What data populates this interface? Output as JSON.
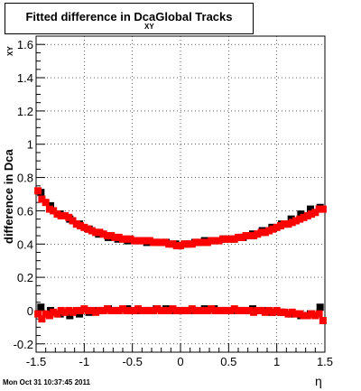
{
  "chart_data": {
    "type": "scatter",
    "title": "Fitted difference in Dca",
    "title_subscript": "XY",
    "title_suffix": "Global Tracks",
    "xlabel": "η",
    "ylabel": "difference in Dca",
    "ylabel_subscript": "XY",
    "xlim": [
      -1.5,
      1.5
    ],
    "ylim": [
      -0.25,
      1.65
    ],
    "xticks": [
      -1.5,
      -1,
      -0.5,
      0,
      0.5,
      1,
      1.5
    ],
    "xtick_labels": [
      "-1.5",
      "-1",
      "-0.5",
      "0",
      "0.5",
      "1",
      "1.5"
    ],
    "yticks": [
      -0.2,
      0,
      0.2,
      0.4,
      0.6,
      0.8,
      1,
      1.2,
      1.4,
      1.6
    ],
    "ytick_labels": [
      "-0.2",
      "0",
      "0.2",
      "0.4",
      "0.6",
      "0.8",
      "1",
      "1.2",
      "1.4",
      "1.6"
    ],
    "grid": true,
    "series": [
      {
        "color": "#000000",
        "x": [
          -1.45,
          -1.35,
          -1.25,
          -1.15,
          -1.05,
          -0.95,
          -0.85,
          -0.75,
          -0.65,
          -0.55,
          -0.45,
          -0.35,
          -0.25,
          -0.15,
          -0.05,
          0.05,
          0.15,
          0.25,
          0.35,
          0.45,
          0.55,
          0.65,
          0.75,
          0.85,
          0.95,
          1.05,
          1.15,
          1.25,
          1.35,
          1.45
        ],
        "y": [
          0.71,
          0.63,
          0.58,
          0.55,
          0.52,
          0.49,
          0.46,
          0.44,
          0.43,
          0.42,
          0.42,
          0.41,
          0.41,
          0.41,
          0.4,
          0.4,
          0.41,
          0.42,
          0.42,
          0.43,
          0.43,
          0.44,
          0.46,
          0.48,
          0.5,
          0.52,
          0.55,
          0.58,
          0.61,
          0.62
        ]
      },
      {
        "color": "#000000",
        "x": [
          -1.45,
          -1.35,
          -1.25,
          -1.15,
          -1.05,
          -0.95,
          -0.85,
          -0.75,
          -0.65,
          -0.55,
          -0.45,
          -0.35,
          -0.25,
          -0.15,
          -0.05,
          0.05,
          0.15,
          0.25,
          0.35,
          0.45,
          0.55,
          0.65,
          0.75,
          0.85,
          0.95,
          1.05,
          1.15,
          1.25,
          1.35,
          1.45
        ],
        "y": [
          0.02,
          0.0,
          -0.02,
          -0.03,
          -0.02,
          -0.01,
          0.0,
          0.01,
          0.0,
          0.01,
          0.0,
          0.0,
          0.01,
          0.01,
          0.0,
          0.0,
          0.0,
          0.01,
          0.01,
          0.0,
          0.0,
          0.0,
          0.01,
          0.0,
          -0.01,
          -0.01,
          -0.02,
          -0.03,
          -0.02,
          0.02
        ]
      },
      {
        "color": "#ff0000",
        "x": [
          -1.48,
          -1.44,
          -1.4,
          -1.36,
          -1.32,
          -1.28,
          -1.24,
          -1.2,
          -1.16,
          -1.12,
          -1.08,
          -1.04,
          -1.0,
          -0.96,
          -0.92,
          -0.88,
          -0.84,
          -0.8,
          -0.76,
          -0.72,
          -0.68,
          -0.64,
          -0.6,
          -0.56,
          -0.52,
          -0.48,
          -0.44,
          -0.4,
          -0.36,
          -0.32,
          -0.28,
          -0.24,
          -0.2,
          -0.16,
          -0.12,
          -0.08,
          -0.04,
          0.0,
          0.04,
          0.08,
          0.12,
          0.16,
          0.2,
          0.24,
          0.28,
          0.32,
          0.36,
          0.4,
          0.44,
          0.48,
          0.52,
          0.56,
          0.6,
          0.64,
          0.68,
          0.72,
          0.76,
          0.8,
          0.84,
          0.88,
          0.92,
          0.96,
          1.0,
          1.04,
          1.08,
          1.12,
          1.16,
          1.2,
          1.24,
          1.28,
          1.32,
          1.36,
          1.4,
          1.44,
          1.48
        ],
        "y": [
          0.72,
          0.67,
          0.65,
          0.61,
          0.6,
          0.58,
          0.57,
          0.57,
          0.56,
          0.54,
          0.52,
          0.51,
          0.5,
          0.49,
          0.48,
          0.47,
          0.47,
          0.46,
          0.45,
          0.45,
          0.44,
          0.44,
          0.43,
          0.43,
          0.43,
          0.42,
          0.42,
          0.42,
          0.42,
          0.42,
          0.41,
          0.41,
          0.41,
          0.41,
          0.4,
          0.4,
          0.39,
          0.39,
          0.4,
          0.4,
          0.4,
          0.41,
          0.41,
          0.41,
          0.41,
          0.42,
          0.42,
          0.42,
          0.43,
          0.43,
          0.43,
          0.43,
          0.44,
          0.44,
          0.45,
          0.45,
          0.45,
          0.46,
          0.47,
          0.47,
          0.48,
          0.49,
          0.5,
          0.51,
          0.52,
          0.52,
          0.53,
          0.54,
          0.55,
          0.56,
          0.57,
          0.58,
          0.59,
          0.61,
          0.61
        ]
      },
      {
        "color": "#ff0000",
        "x": [
          -1.48,
          -1.44,
          -1.4,
          -1.36,
          -1.32,
          -1.28,
          -1.24,
          -1.2,
          -1.16,
          -1.12,
          -1.08,
          -1.04,
          -1.0,
          -0.96,
          -0.92,
          -0.88,
          -0.84,
          -0.8,
          -0.76,
          -0.72,
          -0.68,
          -0.64,
          -0.6,
          -0.56,
          -0.52,
          -0.48,
          -0.44,
          -0.4,
          -0.36,
          -0.32,
          -0.28,
          -0.24,
          -0.2,
          -0.16,
          -0.12,
          -0.08,
          -0.04,
          0.0,
          0.04,
          0.08,
          0.12,
          0.16,
          0.2,
          0.24,
          0.28,
          0.32,
          0.36,
          0.4,
          0.44,
          0.48,
          0.52,
          0.56,
          0.6,
          0.64,
          0.68,
          0.72,
          0.76,
          0.8,
          0.84,
          0.88,
          0.92,
          0.96,
          1.0,
          1.04,
          1.08,
          1.12,
          1.16,
          1.2,
          1.24,
          1.28,
          1.32,
          1.36,
          1.4,
          1.44,
          1.48
        ],
        "y": [
          -0.02,
          -0.05,
          -0.02,
          -0.03,
          -0.01,
          -0.02,
          0.0,
          -0.01,
          0.0,
          -0.01,
          0.0,
          0.0,
          0.01,
          0.0,
          0.0,
          -0.01,
          0.0,
          0.0,
          0.01,
          0.0,
          0.0,
          0.0,
          0.01,
          0.0,
          0.0,
          0.0,
          0.01,
          0.0,
          0.0,
          0.0,
          0.0,
          0.01,
          0.0,
          0.0,
          0.0,
          0.01,
          0.0,
          0.0,
          0.0,
          0.0,
          0.01,
          0.0,
          0.0,
          0.0,
          0.0,
          0.01,
          0.0,
          0.0,
          0.0,
          0.0,
          0.0,
          0.01,
          0.0,
          0.0,
          0.0,
          0.0,
          -0.01,
          0.0,
          0.0,
          -0.01,
          0.0,
          -0.01,
          0.0,
          -0.01,
          -0.01,
          -0.02,
          -0.01,
          -0.02,
          -0.02,
          -0.03,
          -0.03,
          -0.02,
          -0.03,
          -0.02,
          -0.06
        ]
      }
    ]
  },
  "footer": {
    "timestamp": "Mon Oct 31 10:37:45 2011"
  }
}
